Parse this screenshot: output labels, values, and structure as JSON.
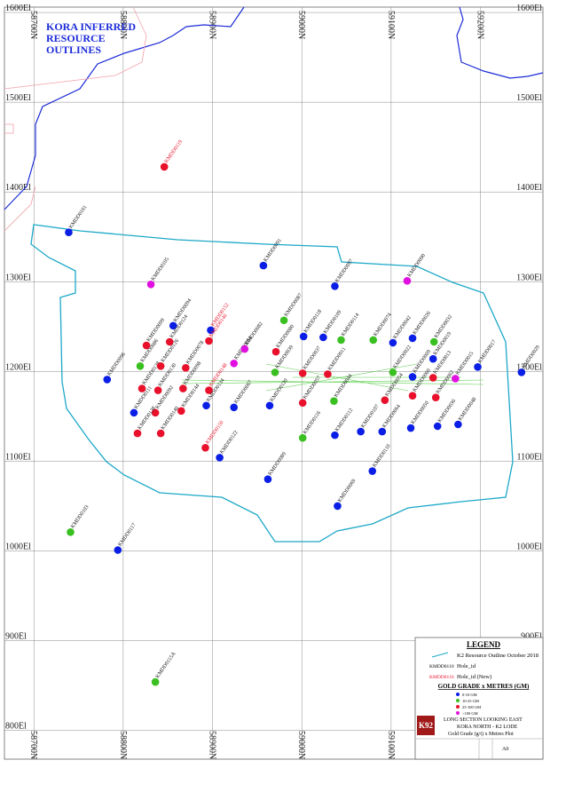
{
  "map": {
    "title": "KORA INFERRED RESOURCE OUTLINES",
    "xlim": [
      58667,
      59270
    ],
    "ylim": [
      768,
      1606
    ],
    "xticks": [
      {
        "value": 58700,
        "label": "58700N"
      },
      {
        "value": 58800,
        "label": "58800N"
      },
      {
        "value": 58900,
        "label": "58900N"
      },
      {
        "value": 59000,
        "label": "59000N"
      },
      {
        "value": 59100,
        "label": "59100N"
      },
      {
        "value": 59200,
        "label": "59200N"
      }
    ],
    "yticks": [
      {
        "value": 1600,
        "label": "1600El"
      },
      {
        "value": 1500,
        "label": "1500El"
      },
      {
        "value": 1400,
        "label": "1400El"
      },
      {
        "value": 1300,
        "label": "1300El"
      },
      {
        "value": 1200,
        "label": "1200El"
      },
      {
        "value": 1100,
        "label": "1100El"
      },
      {
        "value": 1000,
        "label": "1000El"
      },
      {
        "value": 900,
        "label": "900El"
      },
      {
        "value": 800,
        "label": "800El"
      }
    ],
    "grade_classes": [
      {
        "label": "0-10 GM",
        "color": "#0a1ee6"
      },
      {
        "label": "10-25 GM",
        "color": "#39c020"
      },
      {
        "label": "25-100 GM",
        "color": "#e8102a"
      },
      {
        "label": ">100 GM",
        "color": "#e010e0"
      }
    ],
    "holes": [
      {
        "id": "KMDD0101",
        "n": 58739,
        "el": 1355,
        "grade": "0-10 GM",
        "new": false
      },
      {
        "id": "KMDD0119",
        "n": 58846,
        "el": 1428,
        "grade": "25-100 GM",
        "new": true
      },
      {
        "id": "KMDD0105",
        "n": 58831,
        "el": 1297,
        "grade": ">100 GM",
        "new": false
      },
      {
        "id": "KMDD0091",
        "n": 58957,
        "el": 1318,
        "grade": "0-10 GM",
        "new": false
      },
      {
        "id": "KMDD0097",
        "n": 59037,
        "el": 1295,
        "grade": "0-10 GM",
        "new": false
      },
      {
        "id": "KMDD0090",
        "n": 59118,
        "el": 1301,
        "grade": ">100 GM",
        "new": false
      },
      {
        "id": "KMDD0096",
        "n": 58782,
        "el": 1191,
        "grade": "0-10 GM",
        "new": false
      },
      {
        "id": "KMDD0087",
        "n": 58980,
        "el": 1257,
        "grade": "10-25 GM",
        "new": false
      },
      {
        "id": "KMDD0152",
        "n": 58898,
        "el": 1246,
        "grade": "0-10 GM",
        "new": true
      },
      {
        "id": "KMDD0146",
        "n": 58896,
        "el": 1234,
        "grade": "25-100 GM",
        "new": true
      },
      {
        "id": "KMDD0094",
        "n": 58856,
        "el": 1251,
        "grade": "0-10 GM",
        "new": false
      },
      {
        "id": "KMDD0124",
        "n": 58852,
        "el": 1233,
        "grade": "25-100 GM",
        "new": false
      },
      {
        "id": "KMDD0099",
        "n": 58826,
        "el": 1229,
        "grade": "25-100 GM",
        "new": false
      },
      {
        "id": "KMDD0114",
        "n": 59044,
        "el": 1235,
        "grade": "10-25 GM",
        "new": false
      },
      {
        "id": "KMDD0109",
        "n": 59024,
        "el": 1238,
        "grade": "0-10 GM",
        "new": false
      },
      {
        "id": "KMDD0118",
        "n": 59002,
        "el": 1239,
        "grade": "0-10 GM",
        "new": false
      },
      {
        "id": "KMDD0074",
        "n": 59080,
        "el": 1235,
        "grade": "10-25 GM",
        "new": false
      },
      {
        "id": "KMDD0042",
        "n": 59102,
        "el": 1232,
        "grade": "0-10 GM",
        "new": false
      },
      {
        "id": "KMDD0026",
        "n": 59124,
        "el": 1237,
        "grade": "0-10 GM",
        "new": false
      },
      {
        "id": "KMDD0032",
        "n": 59148,
        "el": 1233,
        "grade": "10-25 GM",
        "new": false
      },
      {
        "id": "KMDD0019",
        "n": 59147,
        "el": 1214,
        "grade": "0-10 GM",
        "new": false
      },
      {
        "id": "KMDD0017",
        "n": 59197,
        "el": 1205,
        "grade": "0-10 GM",
        "new": false
      },
      {
        "id": "KMDD0029",
        "n": 59246,
        "el": 1199,
        "grade": "0-10 GM",
        "new": false
      },
      {
        "id": "KMDD0120",
        "n": 58964,
        "el": 1162,
        "grade": "0-10 GM",
        "new": false
      },
      {
        "id": "KMDD0116",
        "n": 59001,
        "el": 1126,
        "grade": "10-25 GM",
        "new": false
      },
      {
        "id": "KMDD0112",
        "n": 59037,
        "el": 1129,
        "grade": "0-10 GM",
        "new": false
      },
      {
        "id": "KMDD0107",
        "n": 59066,
        "el": 1133,
        "grade": "0-10 GM",
        "new": false
      },
      {
        "id": "KMDD0064",
        "n": 59090,
        "el": 1133,
        "grade": "0-10 GM",
        "new": false
      },
      {
        "id": "KMDD0050",
        "n": 59122,
        "el": 1137,
        "grade": "0-10 GM",
        "new": false
      },
      {
        "id": "KMDD0036",
        "n": 59152,
        "el": 1139,
        "grade": "0-10 GM",
        "new": false
      },
      {
        "id": "KMDD0048",
        "n": 59175,
        "el": 1141,
        "grade": "0-10 GM",
        "new": false
      },
      {
        "id": "KMDD0089",
        "n": 58962,
        "el": 1080,
        "grade": "0-10 GM",
        "new": false
      },
      {
        "id": "KMDD0069",
        "n": 59040,
        "el": 1050,
        "grade": "0-10 GM",
        "new": false
      },
      {
        "id": "KMDD0110",
        "n": 59079,
        "el": 1089,
        "grade": "0-10 GM",
        "new": false
      },
      {
        "id": "KMDD0103",
        "n": 58741,
        "el": 1021,
        "grade": "10-25 GM",
        "new": false
      },
      {
        "id": "KMDD0117",
        "n": 58794,
        "el": 1001,
        "grade": "0-10 GM",
        "new": false
      },
      {
        "id": "KMDD0115A",
        "n": 58836,
        "el": 854,
        "grade": "10-25 GM",
        "new": false
      },
      {
        "id": "KMDD0150",
        "n": 58892,
        "el": 1115,
        "grade": "25-100 GM",
        "new": true
      },
      {
        "id": "KMDD0122",
        "n": 58908,
        "el": 1104,
        "grade": "0-10 GM",
        "new": false
      },
      {
        "id": "KMDD0148",
        "n": 58896,
        "el": 1179,
        "grade": "25-100 GM",
        "new": true
      },
      {
        "id": "KMDD0144",
        "n": 58865,
        "el": 1156,
        "grade": "25-100 GM",
        "new": false
      },
      {
        "id": "KMDD0098",
        "n": 58867,
        "el": 1181,
        "grade": "25-100 GM",
        "new": false
      },
      {
        "id": "KMDD0130",
        "n": 58839,
        "el": 1179,
        "grade": "25-100 GM",
        "new": false
      },
      {
        "id": "KMDD0092",
        "n": 58836,
        "el": 1154,
        "grade": "25-100 GM",
        "new": false
      },
      {
        "id": "KMDD0140",
        "n": 58842,
        "el": 1131,
        "grade": "25-100 GM",
        "new": false
      },
      {
        "id": "KMDD0111",
        "n": 58812,
        "el": 1154,
        "grade": "0-10 GM",
        "new": false
      },
      {
        "id": "KMDD0128",
        "n": 58821,
        "el": 1181,
        "grade": "25-100 GM",
        "new": false
      },
      {
        "id": "KMDD0078",
        "n": 58870,
        "el": 1204,
        "grade": "25-100 GM",
        "new": false
      },
      {
        "id": "KMDD0084",
        "n": 58924,
        "el": 1209,
        "grade": ">100 GM",
        "new": false
      },
      {
        "id": "KMDD0082",
        "n": 58936,
        "el": 1225,
        "grade": ">100 GM",
        "new": false
      },
      {
        "id": "KMDD0080",
        "n": 58971,
        "el": 1222,
        "grade": "25-100 GM",
        "new": false
      },
      {
        "id": "KMDD0067",
        "n": 58924,
        "el": 1160,
        "grade": "0-10 GM",
        "new": false
      },
      {
        "id": "KMDD0039",
        "n": 58970,
        "el": 1199,
        "grade": "10-25 GM",
        "new": false
      },
      {
        "id": "KMDD0037",
        "n": 59001,
        "el": 1198,
        "grade": "25-100 GM",
        "new": false
      },
      {
        "id": "KMDD0011",
        "n": 59029,
        "el": 1197,
        "grade": "25-100 GM",
        "new": false
      },
      {
        "id": "KMDD0022",
        "n": 59102,
        "el": 1199,
        "grade": "10-25 GM",
        "new": false
      },
      {
        "id": "KMDD0009",
        "n": 59124,
        "el": 1194,
        "grade": "0-10 GM",
        "new": false
      },
      {
        "id": "KMDD0013",
        "n": 59147,
        "el": 1193,
        "grade": "25-100 GM",
        "new": false
      },
      {
        "id": "KMDD0015",
        "n": 59172,
        "el": 1192,
        "grade": ">100 GM",
        "new": false
      },
      {
        "id": "KMDD0044",
        "n": 59036,
        "el": 1167,
        "grade": "10-25 GM",
        "new": false
      },
      {
        "id": "KMDD0054",
        "n": 59093,
        "el": 1168,
        "grade": "25-100 GM",
        "new": false
      },
      {
        "id": "KMDD0060",
        "n": 59124,
        "el": 1173,
        "grade": "25-100 GM",
        "new": false
      },
      {
        "id": "KMDD0062",
        "n": 59150,
        "el": 1171,
        "grade": "25-100 GM",
        "new": false
      },
      {
        "id": "KMDD0057",
        "n": 59001,
        "el": 1165,
        "grade": "25-100 GM",
        "new": false
      },
      {
        "id": "KMDD0086",
        "n": 58819,
        "el": 1206,
        "grade": "10-25 GM",
        "new": false
      },
      {
        "id": "KMDD0126",
        "n": 58842,
        "el": 1206,
        "grade": "25-100 GM",
        "new": false
      },
      {
        "id": "KMDD0134",
        "n": 58893,
        "el": 1162,
        "grade": "0-10 GM",
        "new": false
      },
      {
        "id": "KMDD0138",
        "n": 58816,
        "el": 1131,
        "grade": "25-100 GM",
        "new": false
      }
    ],
    "legend": {
      "title": "LEGEND",
      "outline": "K2 Resource Outline October 2018",
      "hole_example": "KMDD0110",
      "hole_text": "Hole_id",
      "new_example": "KMDD0116",
      "new_text": "Hole_id (New)",
      "grade_title": "GOLD GRADE x METRES (GM)"
    },
    "title_block": {
      "logo": "K92",
      "line1": "LONG SECTION LOOKING EAST",
      "line2": "KORA NORTH - K2 LODE",
      "line3": "Gold Grade (g/t) x Metres Plot",
      "sheet": "A0"
    }
  }
}
